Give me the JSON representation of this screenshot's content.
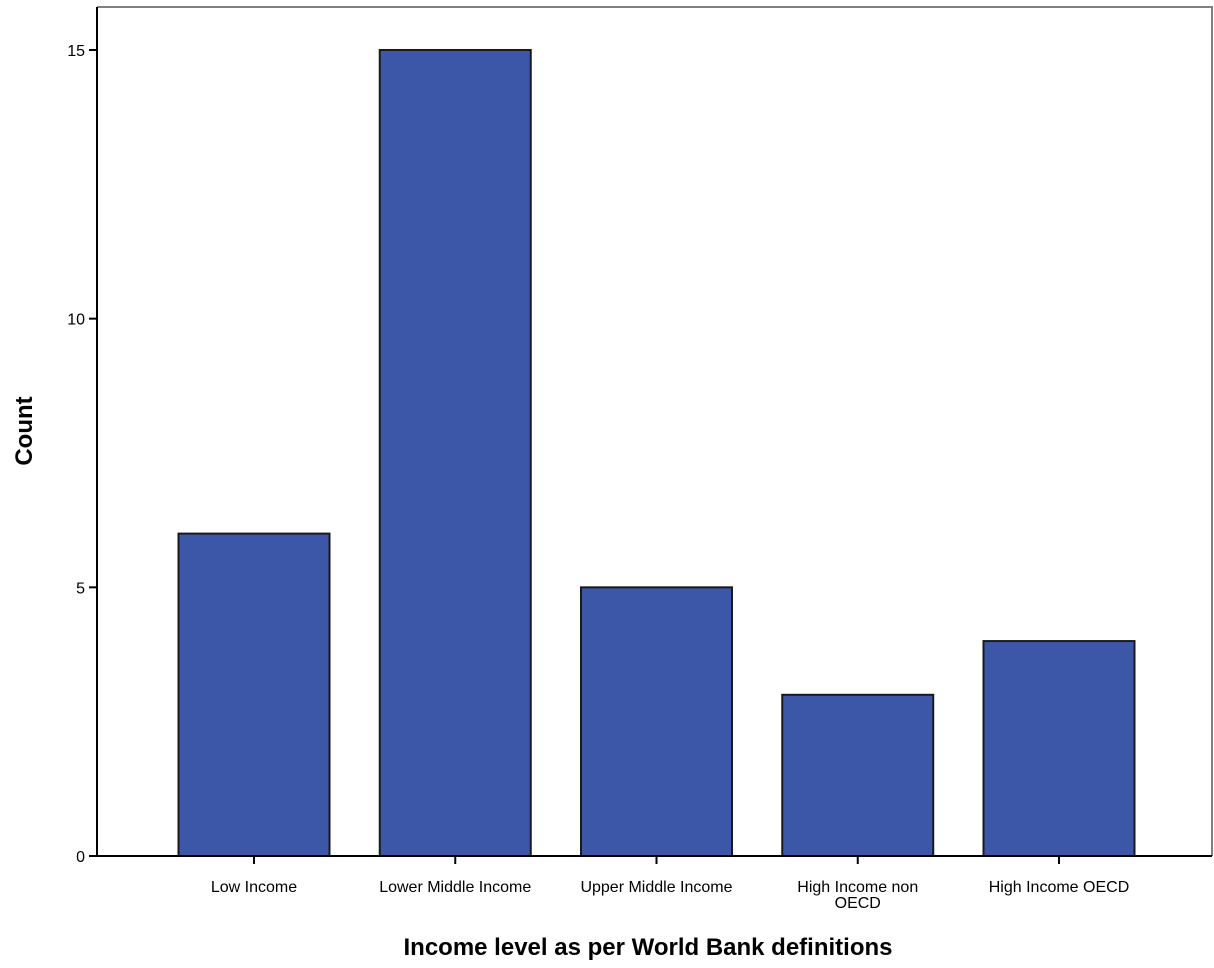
{
  "chart_data": {
    "type": "bar",
    "title": "",
    "xlabel": "Income level as per World Bank definitions",
    "ylabel": "Count",
    "categories": [
      [
        "Low Income"
      ],
      [
        "Lower Middle Income"
      ],
      [
        "Upper Middle Income"
      ],
      [
        "High Income non",
        "OECD"
      ],
      [
        "High Income OECD"
      ]
    ],
    "values": [
      6,
      15,
      5,
      3,
      4
    ],
    "ylim": [
      0,
      15.8
    ],
    "yticks": [
      0,
      5,
      10,
      15
    ],
    "grid": false,
    "legend": "none",
    "colors": {
      "bar_fill": "#3d57a8",
      "bar_stroke": "#1a1a1a",
      "axis": "#000000",
      "frame": "#808080"
    }
  }
}
